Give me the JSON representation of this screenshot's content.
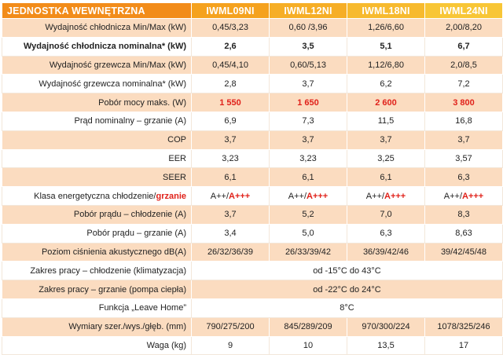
{
  "header": [
    "JEDNOSTKA WEWNĘTRZNA",
    "IWML09NI",
    "IWML12NI",
    "IWML18NI",
    "IWML24NI"
  ],
  "rows": [
    {
      "label": "Wydajność chłodnicza Min/Max (kW)",
      "values": [
        "0,45/3,23",
        "0,60 /3,96",
        "1,26/6,60",
        "2,00/8,20"
      ]
    },
    {
      "label": "Wydajność chłodnicza nominalna* (kW)",
      "values": [
        "2,6",
        "3,5",
        "5,1",
        "6,7"
      ]
    },
    {
      "label": "Wydajność grzewcza Min/Max (kW)",
      "values": [
        "0,45/4,10",
        "0,60/5,13",
        "1,12/6,80",
        "2,0/8,5"
      ]
    },
    {
      "label": "Wydajność grzewcza nominalna* (kW)",
      "values": [
        "2,8",
        "3,7",
        "6,2",
        "7,2"
      ]
    },
    {
      "label": "Pobór mocy maks. (W)",
      "values": [
        "1 550",
        "1 650",
        "2 600",
        "3 800"
      ]
    },
    {
      "label": "Prąd nominalny – grzanie (A)",
      "values": [
        "6,9",
        "7,3",
        "11,5",
        "16,8"
      ]
    },
    {
      "label": "COP",
      "values": [
        "3,7",
        "3,7",
        "3,7",
        "3,7"
      ]
    },
    {
      "label": "EER",
      "values": [
        "3,23",
        "3,23",
        "3,25",
        "3,57"
      ]
    },
    {
      "label": "SEER",
      "values": [
        "6,1",
        "6,1",
        "6,1",
        "6,3"
      ]
    },
    {
      "label_a": "Klasa energetyczna chłodzenie/",
      "label_b": "grzanie",
      "values_a": [
        "A++/",
        "A++/",
        "A++/",
        "A++/"
      ],
      "values_b": [
        "A+++",
        "A+++",
        "A+++",
        "A+++"
      ]
    },
    {
      "label": "Pobór prądu – chłodzenie (A)",
      "values": [
        "3,7",
        "5,2",
        "7,0",
        "8,3"
      ]
    },
    {
      "label": "Pobór prądu – grzanie (A)",
      "values": [
        "3,4",
        "5,0",
        "6,3",
        "8,63"
      ]
    },
    {
      "label": "Poziom ciśnienia akustycznego dB(A)",
      "values": [
        "26/32/36/39",
        "26/33/39/42",
        "36/39/42/46",
        "39/42/45/48"
      ]
    },
    {
      "label": "Zakres pracy – chłodzenie (klimatyzacja)",
      "merged": "od -15°C do 43°C"
    },
    {
      "label": "Zakres pracy – grzanie (pompa ciepła)",
      "merged": "od -22°C do 24°C"
    },
    {
      "label": "Funkcja „Leave Home”",
      "merged": "8°C"
    },
    {
      "label": "Wymiary szer./wys./głęb. (mm)",
      "values": [
        "790/275/200",
        "845/289/209",
        "970/300/224",
        "1078/325/246"
      ]
    },
    {
      "label": "Waga (kg)",
      "values": [
        "9",
        "10",
        "13,5",
        "17"
      ]
    }
  ]
}
